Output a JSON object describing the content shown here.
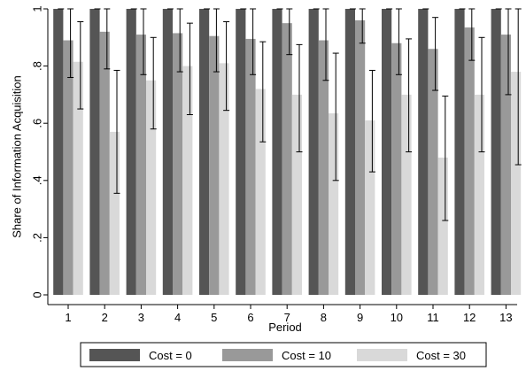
{
  "chart_data": {
    "type": "bar",
    "xlabel": "Period",
    "ylabel": "Share of Information Acquisition",
    "ylim": [
      0,
      1
    ],
    "yticks": [
      "0",
      ".2",
      ".4",
      ".6",
      ".8",
      "1"
    ],
    "categories": [
      "1",
      "2",
      "3",
      "4",
      "5",
      "6",
      "7",
      "8",
      "9",
      "10",
      "11",
      "12",
      "13"
    ],
    "series": [
      {
        "name": "Cost = 0",
        "color": "#555555",
        "values": [
          1,
          1,
          1,
          1,
          1,
          1,
          1,
          1,
          1,
          1,
          1,
          1,
          1
        ],
        "ci_low": [
          1,
          1,
          1,
          1,
          1,
          1,
          1,
          1,
          1,
          1,
          1,
          1,
          1
        ],
        "ci_high": [
          1,
          1,
          1,
          1,
          1,
          1,
          1,
          1,
          1,
          1,
          1,
          1,
          1
        ]
      },
      {
        "name": "Cost = 10",
        "color": "#999999",
        "values": [
          0.89,
          0.92,
          0.91,
          0.915,
          0.905,
          0.895,
          0.95,
          0.89,
          0.96,
          0.88,
          0.86,
          0.935,
          0.91
        ],
        "ci_low": [
          0.76,
          0.79,
          0.77,
          0.78,
          0.78,
          0.77,
          0.84,
          0.75,
          0.88,
          0.77,
          0.715,
          0.82,
          0.7
        ],
        "ci_high": [
          1.0,
          1.0,
          1.0,
          1.0,
          1.0,
          1.0,
          1.0,
          1.0,
          1.0,
          1.0,
          0.97,
          1.0,
          1.0
        ]
      },
      {
        "name": "Cost = 30",
        "color": "#d9d9d9",
        "values": [
          0.815,
          0.57,
          0.75,
          0.8,
          0.81,
          0.72,
          0.7,
          0.635,
          0.61,
          0.7,
          0.48,
          0.7,
          0.78
        ],
        "ci_low": [
          0.65,
          0.355,
          0.58,
          0.63,
          0.645,
          0.535,
          0.5,
          0.4,
          0.43,
          0.5,
          0.26,
          0.5,
          0.455
        ],
        "ci_high": [
          0.955,
          0.785,
          0.9,
          0.95,
          0.955,
          0.885,
          0.875,
          0.845,
          0.785,
          0.895,
          0.695,
          0.9,
          1.0
        ]
      }
    ],
    "legend": {
      "placement": "bottom"
    },
    "grid": false
  }
}
